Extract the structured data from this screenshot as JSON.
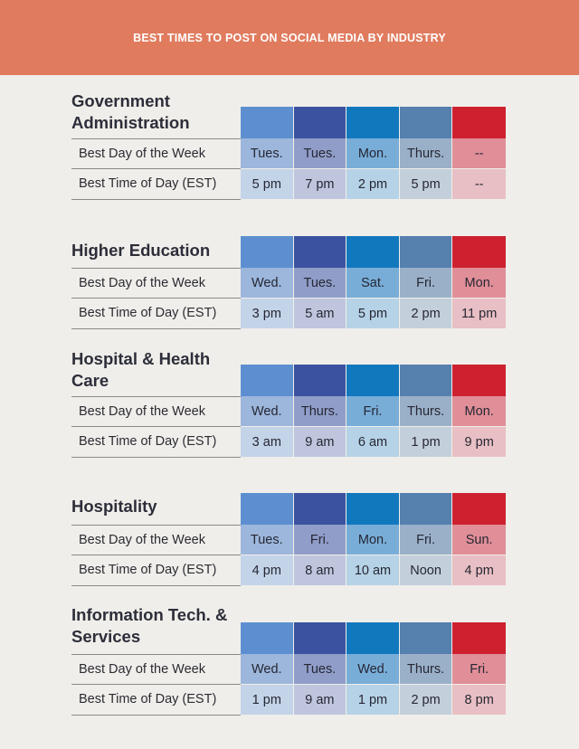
{
  "header": {
    "title": "BEST TIMES TO POST ON SOCIAL MEDIA BY INDUSTRY"
  },
  "colors": {
    "header_bg": "#e07b5e",
    "background": "#f0eeea",
    "columns_top": [
      "#5d8fd0",
      "#3b52a0",
      "#1278be",
      "#5680ae",
      "#cd2130"
    ],
    "columns_day": [
      "#9cb6dc",
      "#8f9dc8",
      "#78add8",
      "#9ab0c8",
      "#e08e98"
    ],
    "columns_time": [
      "#c3d3e8",
      "#bfc5dd",
      "#b6d2e6",
      "#c3cfdb",
      "#e8bfc4"
    ]
  },
  "row_labels": {
    "day": "Best Day of the Week",
    "time": "Best Time of Day (EST)"
  },
  "industries": [
    {
      "title": "Government Administration",
      "days": [
        "Tues.",
        "Tues.",
        "Mon.",
        "Thurs.",
        "--"
      ],
      "times": [
        "5 pm",
        "7 pm",
        "2 pm",
        "5 pm",
        "--"
      ]
    },
    {
      "title": "Higher Education",
      "days": [
        "Wed.",
        "Tues.",
        "Sat.",
        "Fri.",
        "Mon."
      ],
      "times": [
        "3 pm",
        "5 am",
        "5 pm",
        "2 pm",
        "11 pm"
      ]
    },
    {
      "title": "Hospital & Health Care",
      "days": [
        "Wed.",
        "Thurs.",
        "Fri.",
        "Thurs.",
        "Mon."
      ],
      "times": [
        "3 am",
        "9 am",
        "6 am",
        "1 pm",
        "9 pm"
      ]
    },
    {
      "title": "Hospitality",
      "days": [
        "Tues.",
        "Fri.",
        "Mon.",
        "Fri.",
        "Sun."
      ],
      "times": [
        "4 pm",
        "8 am",
        "10 am",
        "Noon",
        "4 pm"
      ]
    },
    {
      "title": "Information Tech. & Services",
      "days": [
        "Wed.",
        "Tues.",
        "Wed.",
        "Thurs.",
        "Fri."
      ],
      "times": [
        "1 pm",
        "9 am",
        "1 pm",
        "2 pm",
        "8 pm"
      ]
    }
  ]
}
